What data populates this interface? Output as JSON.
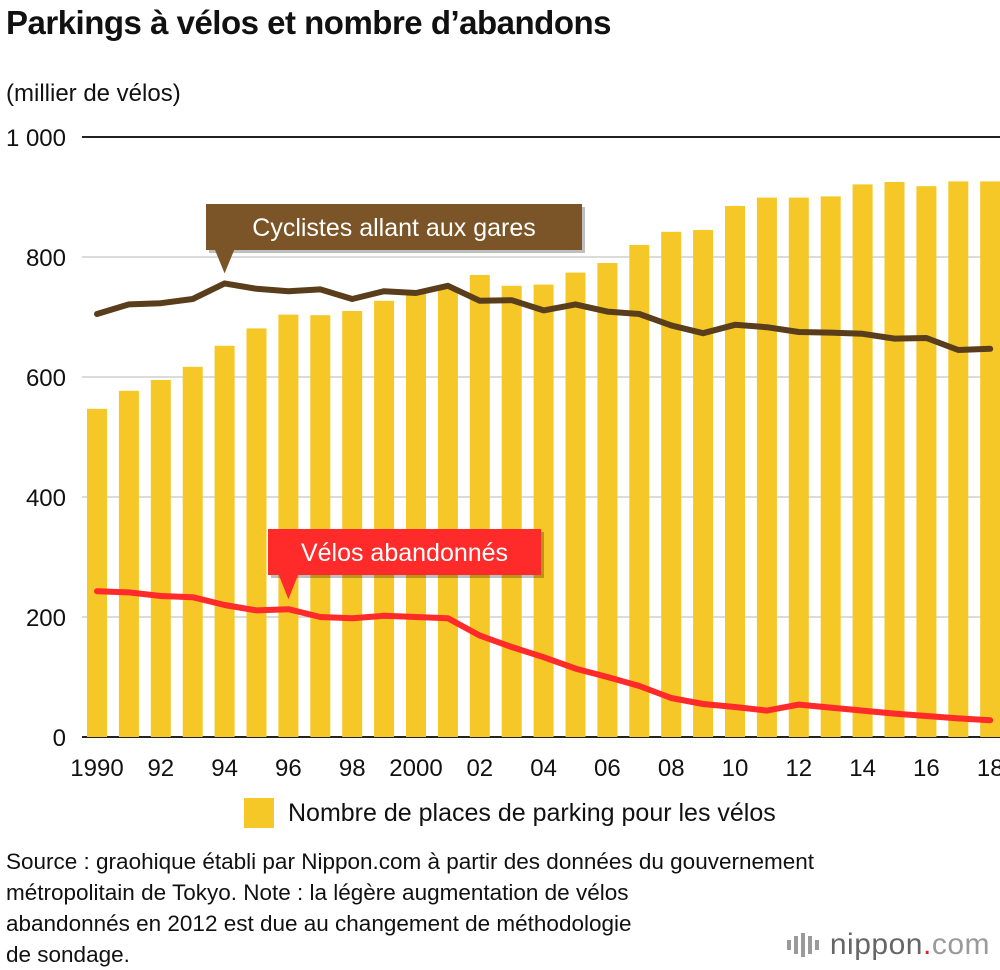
{
  "chart_data": {
    "type": "bar",
    "title": "Parkings à vélos et nombre d’abandons",
    "ylabel": "(millier de vélos)",
    "xlabel": "",
    "ylim": [
      0,
      1000
    ],
    "yticks": [
      0,
      200,
      400,
      600,
      800,
      1000
    ],
    "ytick_labels": [
      "0",
      "200",
      "400",
      "600",
      "800",
      "1 000"
    ],
    "categories": [
      1990,
      1991,
      1992,
      1993,
      1994,
      1995,
      1996,
      1997,
      1998,
      1999,
      2000,
      2001,
      2002,
      2003,
      2004,
      2005,
      2006,
      2007,
      2008,
      2009,
      2010,
      2011,
      2012,
      2013,
      2014,
      2015,
      2016,
      2017,
      2018
    ],
    "xtick_labels": [
      {
        "year": 1990,
        "label": "1990"
      },
      {
        "year": 1992,
        "label": "92"
      },
      {
        "year": 1994,
        "label": "94"
      },
      {
        "year": 1996,
        "label": "96"
      },
      {
        "year": 1998,
        "label": "98"
      },
      {
        "year": 2000,
        "label": "2000"
      },
      {
        "year": 2002,
        "label": "02"
      },
      {
        "year": 2004,
        "label": "04"
      },
      {
        "year": 2006,
        "label": "06"
      },
      {
        "year": 2008,
        "label": "08"
      },
      {
        "year": 2010,
        "label": "10"
      },
      {
        "year": 2012,
        "label": "12"
      },
      {
        "year": 2014,
        "label": "14"
      },
      {
        "year": 2016,
        "label": "16"
      },
      {
        "year": 2018,
        "label": "18"
      }
    ],
    "grid": true,
    "legend_position": "bottom",
    "series": [
      {
        "name": "Nombre de places de parking pour les vélos",
        "kind": "bar",
        "color": "#f5c727",
        "values": [
          547,
          577,
          595,
          617,
          652,
          681,
          704,
          703,
          710,
          727,
          743,
          748,
          770,
          752,
          754,
          774,
          790,
          820,
          842,
          845,
          885,
          899,
          899,
          901,
          921,
          925,
          918,
          926,
          926
        ]
      },
      {
        "name": "Cyclistes allant aux gares",
        "kind": "line",
        "color": "#5a3e1c",
        "values": [
          705,
          721,
          723,
          730,
          756,
          747,
          743,
          746,
          730,
          743,
          740,
          752,
          727,
          728,
          711,
          721,
          709,
          705,
          686,
          673,
          687,
          683,
          675,
          674,
          672,
          664,
          665,
          645,
          647
        ]
      },
      {
        "name": "Vélos abandonnés",
        "kind": "line",
        "color": "#ff2a2a",
        "values": [
          243,
          241,
          235,
          233,
          220,
          211,
          213,
          200,
          198,
          202,
          200,
          198,
          169,
          150,
          133,
          114,
          100,
          85,
          65,
          55,
          50,
          44,
          54,
          49,
          44,
          39,
          35,
          31,
          28
        ]
      }
    ],
    "annotations": [
      {
        "text": "Cyclistes allant aux gares",
        "series": "Cyclistes allant aux gares",
        "pointer_year": 1994,
        "color": "#7b5527"
      },
      {
        "text": "Vélos abandonnés",
        "series": "Vélos abandonnés",
        "pointer_year": 1996,
        "color": "#ff2a2a"
      }
    ]
  },
  "legend": {
    "label": "Nombre de places de parking pour les vélos",
    "color": "#f5c727"
  },
  "source_lines": [
    "Source : graohique établi par Nippon.com à partir des données du gouvernement",
    "métropolitain de Tokyo. Note : la légère augmentation de vélos",
    "abandonnés en 2012 est due au changement de méthodologie",
    "de sondage."
  ],
  "logo": {
    "main": "nippon",
    "dot": ".",
    "tld": "com"
  }
}
